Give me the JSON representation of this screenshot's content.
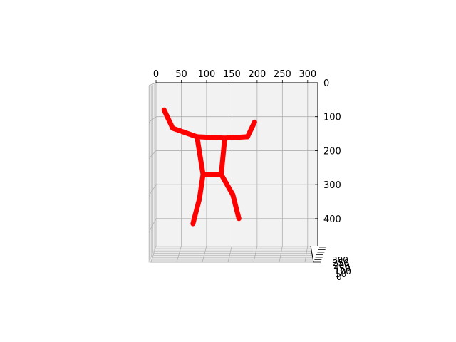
{
  "chart_data": {
    "type": "line",
    "projection": "3d",
    "title": "",
    "xlabel": "",
    "ylabel": "",
    "zlabel": "",
    "grid": true,
    "xlim": [
      0,
      320
    ],
    "ylim": [
      0,
      480
    ],
    "x_ticks": [
      "0",
      "50",
      "100",
      "150",
      "200",
      "250",
      "300"
    ],
    "y_ticks": [
      "0",
      "100",
      "200",
      "300",
      "400"
    ],
    "z_ticks": [
      "0",
      "50",
      "100",
      "150",
      "200",
      "250",
      "300"
    ],
    "y_inverted": true,
    "pane_color": "#f2f2f2",
    "grid_color": "#b0b0b0",
    "series_color": "#ff0000",
    "segments": [
      {
        "name": "left-forearm",
        "points": [
          [
            16,
            80
          ],
          [
            33,
            134
          ]
        ]
      },
      {
        "name": "left-upper-arm",
        "points": [
          [
            33,
            134
          ],
          [
            81,
            159
          ]
        ]
      },
      {
        "name": "shoulders",
        "points": [
          [
            81,
            159
          ],
          [
            136,
            163
          ],
          [
            181,
            159
          ]
        ]
      },
      {
        "name": "right-upper-arm",
        "points": [
          [
            181,
            159
          ],
          [
            195,
            116
          ]
        ]
      },
      {
        "name": "left-torso",
        "points": [
          [
            81,
            159
          ],
          [
            93,
            270
          ]
        ]
      },
      {
        "name": "right-torso",
        "points": [
          [
            136,
            163
          ],
          [
            129,
            270
          ]
        ]
      },
      {
        "name": "hips",
        "points": [
          [
            93,
            270
          ],
          [
            129,
            270
          ]
        ]
      },
      {
        "name": "left-thigh",
        "points": [
          [
            93,
            270
          ],
          [
            86,
            341
          ]
        ]
      },
      {
        "name": "left-shin",
        "points": [
          [
            86,
            341
          ],
          [
            73,
            415
          ]
        ]
      },
      {
        "name": "right-thigh",
        "points": [
          [
            129,
            270
          ],
          [
            152,
            330
          ]
        ]
      },
      {
        "name": "right-shin",
        "points": [
          [
            152,
            330
          ],
          [
            164,
            400
          ]
        ]
      }
    ]
  }
}
